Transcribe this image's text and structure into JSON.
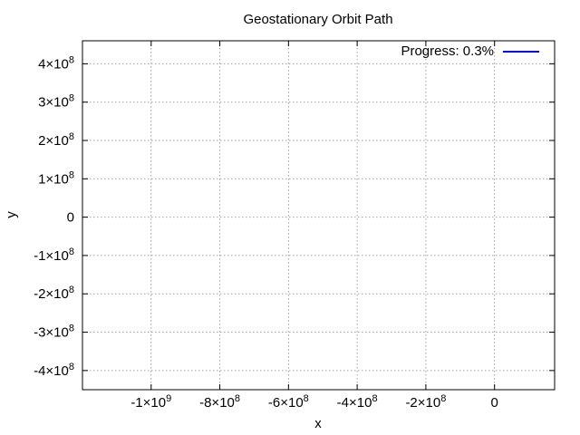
{
  "chart_data": {
    "type": "line",
    "title": "Geostationary Orbit Path",
    "xlabel": "x",
    "ylabel": "y",
    "xlim": [
      -1200000000.0,
      175000000.0
    ],
    "ylim": [
      -450000000.0,
      460000000.0
    ],
    "x_ticks": [
      {
        "value": -1000000000.0,
        "mant": "-1",
        "exp": "9"
      },
      {
        "value": -800000000.0,
        "mant": "-8",
        "exp": "8"
      },
      {
        "value": -600000000.0,
        "mant": "-6",
        "exp": "8"
      },
      {
        "value": -400000000.0,
        "mant": "-4",
        "exp": "8"
      },
      {
        "value": -200000000.0,
        "mant": "-2",
        "exp": "8"
      },
      {
        "value": 0,
        "mant": "0",
        "exp": ""
      }
    ],
    "y_ticks": [
      {
        "value": 400000000.0,
        "mant": "4",
        "exp": "8"
      },
      {
        "value": 300000000.0,
        "mant": "3",
        "exp": "8"
      },
      {
        "value": 200000000.0,
        "mant": "2",
        "exp": "8"
      },
      {
        "value": 100000000.0,
        "mant": "1",
        "exp": "8"
      },
      {
        "value": 0,
        "mant": "0",
        "exp": ""
      },
      {
        "value": -100000000.0,
        "mant": "-1",
        "exp": "8"
      },
      {
        "value": -200000000.0,
        "mant": "-2",
        "exp": "8"
      },
      {
        "value": -300000000.0,
        "mant": "-3",
        "exp": "8"
      },
      {
        "value": -400000000.0,
        "mant": "-4",
        "exp": "8"
      }
    ],
    "grid": true,
    "legend_position": "top-right",
    "series": [
      {
        "name": "Progress: 0.3%",
        "color": "#0000cc",
        "x": [],
        "y": []
      }
    ]
  }
}
